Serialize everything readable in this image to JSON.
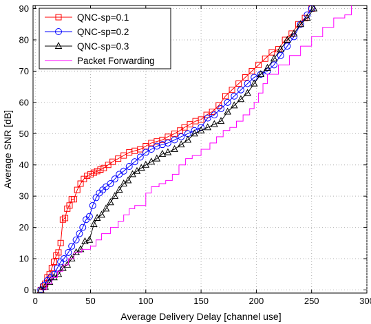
{
  "chart_data": {
    "type": "line",
    "title": "",
    "xlabel": "Average Delivery Delay [channel use]",
    "ylabel": "Average SNR [dB]",
    "xlim": [
      -2,
      300
    ],
    "ylim": [
      -1,
      91
    ],
    "xticks": [
      0,
      50,
      100,
      150,
      200,
      250,
      300
    ],
    "yticks": [
      0,
      10,
      20,
      30,
      40,
      50,
      60,
      70,
      80,
      90
    ],
    "grid": true,
    "legend_position": "top-left",
    "series": [
      {
        "name": "QNC-sp=0.1",
        "color": "#ff0000",
        "marker": "square",
        "points": [
          [
            5,
            0
          ],
          [
            7,
            1
          ],
          [
            9,
            2
          ],
          [
            11,
            4
          ],
          [
            13,
            5
          ],
          [
            15,
            7
          ],
          [
            17,
            9
          ],
          [
            19,
            11
          ],
          [
            21,
            12
          ],
          [
            23,
            15
          ],
          [
            25,
            22.5
          ],
          [
            27,
            23
          ],
          [
            29,
            26
          ],
          [
            31,
            27
          ],
          [
            33,
            29
          ],
          [
            35,
            29
          ],
          [
            38,
            32
          ],
          [
            41,
            34
          ],
          [
            44,
            35.5
          ],
          [
            47,
            36.5
          ],
          [
            50,
            37
          ],
          [
            53,
            37.5
          ],
          [
            56,
            38
          ],
          [
            59,
            38.5
          ],
          [
            62,
            39
          ],
          [
            66,
            40
          ],
          [
            70,
            41
          ],
          [
            75,
            42
          ],
          [
            80,
            43
          ],
          [
            85,
            44
          ],
          [
            90,
            44.5
          ],
          [
            95,
            45
          ],
          [
            100,
            46
          ],
          [
            105,
            47
          ],
          [
            110,
            47.5
          ],
          [
            115,
            48
          ],
          [
            120,
            49
          ],
          [
            126,
            50
          ],
          [
            131,
            51
          ],
          [
            135,
            52
          ],
          [
            140,
            53
          ],
          [
            145,
            54
          ],
          [
            150,
            54.5
          ],
          [
            155,
            56
          ],
          [
            160,
            57
          ],
          [
            166,
            59
          ],
          [
            172,
            62
          ],
          [
            178,
            64
          ],
          [
            184,
            66
          ],
          [
            190,
            68
          ],
          [
            196,
            70
          ],
          [
            202,
            72
          ],
          [
            208,
            74
          ],
          [
            214,
            76
          ],
          [
            220,
            77
          ],
          [
            226,
            80
          ],
          [
            232,
            82
          ],
          [
            238,
            85
          ],
          [
            244,
            87
          ],
          [
            250,
            90
          ]
        ]
      },
      {
        "name": "QNC-sp=0.2",
        "color": "#0000ff",
        "marker": "circle",
        "points": [
          [
            5,
            0
          ],
          [
            8,
            1.5
          ],
          [
            11,
            3
          ],
          [
            14,
            4
          ],
          [
            17,
            5
          ],
          [
            20,
            7
          ],
          [
            23,
            9
          ],
          [
            26,
            10
          ],
          [
            30,
            12
          ],
          [
            33,
            14
          ],
          [
            37,
            16
          ],
          [
            40,
            18
          ],
          [
            43,
            20
          ],
          [
            46,
            22.5
          ],
          [
            49,
            23.5
          ],
          [
            52,
            27
          ],
          [
            55,
            29.5
          ],
          [
            58,
            31
          ],
          [
            61,
            32
          ],
          [
            64,
            33
          ],
          [
            68,
            34
          ],
          [
            72,
            35.5
          ],
          [
            76,
            37
          ],
          [
            80,
            38
          ],
          [
            85,
            39.5
          ],
          [
            90,
            41
          ],
          [
            95,
            42.5
          ],
          [
            100,
            44
          ],
          [
            105,
            45
          ],
          [
            110,
            46
          ],
          [
            115,
            46.5
          ],
          [
            120,
            47
          ],
          [
            126,
            48
          ],
          [
            132,
            49
          ],
          [
            138,
            50
          ],
          [
            144,
            51
          ],
          [
            150,
            52
          ],
          [
            156,
            55
          ],
          [
            162,
            56
          ],
          [
            168,
            58
          ],
          [
            174,
            60
          ],
          [
            180,
            62
          ],
          [
            186,
            64
          ],
          [
            192,
            66
          ],
          [
            198,
            68
          ],
          [
            204,
            69
          ],
          [
            210,
            70
          ],
          [
            216,
            72
          ],
          [
            222,
            75
          ],
          [
            228,
            78
          ],
          [
            234,
            81
          ],
          [
            240,
            85
          ],
          [
            246,
            88
          ],
          [
            250,
            90
          ]
        ]
      },
      {
        "name": "QNC-sp=0.3",
        "color": "#000000",
        "marker": "triangle",
        "points": [
          [
            5,
            0
          ],
          [
            9,
            1
          ],
          [
            13,
            2.5
          ],
          [
            17,
            4
          ],
          [
            21,
            5
          ],
          [
            25,
            7
          ],
          [
            29,
            8
          ],
          [
            33,
            10
          ],
          [
            37,
            12
          ],
          [
            41,
            13
          ],
          [
            45,
            15.5
          ],
          [
            49,
            16
          ],
          [
            53,
            21
          ],
          [
            56,
            23
          ],
          [
            60,
            24
          ],
          [
            64,
            26
          ],
          [
            68,
            28
          ],
          [
            72,
            30
          ],
          [
            76,
            32
          ],
          [
            80,
            34
          ],
          [
            84,
            35
          ],
          [
            88,
            37
          ],
          [
            92,
            38
          ],
          [
            96,
            39
          ],
          [
            100,
            40
          ],
          [
            105,
            41
          ],
          [
            110,
            42
          ],
          [
            115,
            43.5
          ],
          [
            120,
            44
          ],
          [
            126,
            45
          ],
          [
            132,
            46.5
          ],
          [
            138,
            48
          ],
          [
            144,
            50
          ],
          [
            150,
            51
          ],
          [
            156,
            52
          ],
          [
            162,
            53
          ],
          [
            168,
            54
          ],
          [
            174,
            57
          ],
          [
            180,
            59
          ],
          [
            186,
            61
          ],
          [
            192,
            63
          ],
          [
            198,
            66
          ],
          [
            204,
            69
          ],
          [
            210,
            71
          ],
          [
            216,
            74
          ],
          [
            222,
            77
          ],
          [
            228,
            80
          ],
          [
            234,
            82
          ],
          [
            240,
            85
          ],
          [
            246,
            87
          ],
          [
            252,
            90
          ]
        ]
      },
      {
        "name": "Packet Forwarding",
        "color": "#ff00ff",
        "marker": "none",
        "step": true,
        "points": [
          [
            5,
            0
          ],
          [
            10,
            2
          ],
          [
            15,
            4
          ],
          [
            20,
            6
          ],
          [
            25,
            8
          ],
          [
            30,
            10
          ],
          [
            35,
            12
          ],
          [
            42,
            13
          ],
          [
            50,
            14
          ],
          [
            55,
            16
          ],
          [
            60,
            18
          ],
          [
            68,
            20
          ],
          [
            75,
            22
          ],
          [
            80,
            24
          ],
          [
            85,
            26
          ],
          [
            90,
            27
          ],
          [
            95,
            27
          ],
          [
            98,
            27
          ],
          [
            100,
            31
          ],
          [
            105,
            33
          ],
          [
            112,
            34
          ],
          [
            118,
            35
          ],
          [
            124,
            37
          ],
          [
            130,
            40
          ],
          [
            136,
            42
          ],
          [
            142,
            43
          ],
          [
            150,
            45
          ],
          [
            158,
            47
          ],
          [
            164,
            49
          ],
          [
            170,
            51
          ],
          [
            176,
            52
          ],
          [
            182,
            54
          ],
          [
            188,
            56
          ],
          [
            194,
            58
          ],
          [
            198,
            60
          ],
          [
            202,
            63
          ],
          [
            206,
            66
          ],
          [
            210,
            69
          ],
          [
            220,
            72
          ],
          [
            230,
            75
          ],
          [
            240,
            78
          ],
          [
            250,
            81
          ],
          [
            260,
            84
          ],
          [
            270,
            87
          ],
          [
            280,
            88
          ],
          [
            286,
            91
          ]
        ]
      }
    ]
  }
}
